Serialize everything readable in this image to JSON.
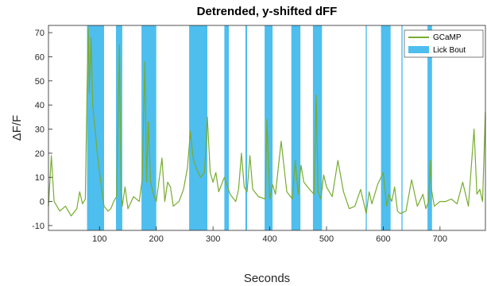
{
  "chart_data": {
    "type": "line",
    "title": "Detrended, y-shifted dFF",
    "xlabel": "Seconds",
    "ylabel": "ΔF/F",
    "xlim": [
      10,
      780
    ],
    "ylim": [
      -12,
      73
    ],
    "xticks": [
      100,
      200,
      300,
      400,
      500,
      600,
      700
    ],
    "yticks": [
      -10,
      0,
      10,
      20,
      30,
      40,
      50,
      60,
      70
    ],
    "grid": false,
    "legend_position": "top-right",
    "colors": {
      "signal": "#77ac30",
      "lick_bout": "#4dbeee"
    },
    "series": [
      {
        "name": "GCaMP",
        "x": [
          10,
          15,
          20,
          30,
          40,
          50,
          60,
          65,
          70,
          75,
          78,
          80,
          82,
          85,
          88,
          90,
          93,
          96,
          100,
          104,
          108,
          115,
          120,
          125,
          130,
          135,
          138,
          140,
          145,
          150,
          160,
          170,
          175,
          180,
          183,
          186,
          190,
          195,
          200,
          210,
          215,
          220,
          225,
          230,
          240,
          248,
          255,
          260,
          265,
          270,
          278,
          285,
          290,
          295,
          300,
          305,
          310,
          320,
          330,
          340,
          345,
          350,
          355,
          360,
          365,
          370,
          380,
          392,
          395,
          400,
          405,
          410,
          420,
          430,
          440,
          445,
          450,
          455,
          460,
          470,
          478,
          482,
          485,
          490,
          495,
          500,
          510,
          520,
          530,
          540,
          550,
          560,
          570,
          575,
          580,
          590,
          600,
          606,
          610,
          615,
          620,
          625,
          630,
          640,
          650,
          660,
          670,
          675,
          680,
          683,
          685,
          690,
          700,
          710,
          720,
          730,
          740,
          750,
          760,
          765,
          770,
          775,
          780
        ],
        "values": [
          -2,
          19,
          0,
          -4,
          -2,
          -6,
          -3,
          4,
          -1,
          1,
          47,
          72,
          45,
          68,
          40,
          35,
          28,
          20,
          12,
          5,
          -2,
          -4,
          -3,
          0,
          2,
          65,
          5,
          -2,
          6,
          -3,
          2,
          0,
          9,
          58,
          8,
          33,
          8,
          3,
          0,
          18,
          0,
          8,
          6,
          -2,
          0,
          5,
          14,
          29,
          18,
          14,
          10,
          12,
          35,
          12,
          8,
          12,
          4,
          10,
          3,
          0,
          5,
          20,
          6,
          4,
          19,
          5,
          2,
          1,
          34,
          1,
          7,
          3,
          25,
          4,
          1,
          17,
          3,
          15,
          8,
          5,
          3,
          44,
          4,
          1,
          11,
          6,
          2,
          17,
          4,
          -3,
          -2,
          5,
          -5,
          4,
          -1,
          7,
          12,
          -2,
          3,
          0,
          6,
          -4,
          -5,
          -4,
          9,
          -2,
          3,
          -3,
          0,
          17,
          5,
          -2,
          0,
          0,
          1,
          -1,
          8,
          -2,
          30,
          3,
          5,
          0,
          37
        ]
      }
    ],
    "lick_bout": {
      "name": "Lick Bout",
      "intervals": [
        [
          78,
          108
        ],
        [
          129,
          140
        ],
        [
          174,
          200
        ],
        [
          258,
          290
        ],
        [
          320,
          328
        ],
        [
          357,
          360
        ],
        [
          391,
          405
        ],
        [
          438,
          454
        ],
        [
          476,
          492
        ],
        [
          569,
          571
        ],
        [
          596,
          613
        ],
        [
          632,
          634
        ],
        [
          678,
          686
        ]
      ]
    }
  }
}
